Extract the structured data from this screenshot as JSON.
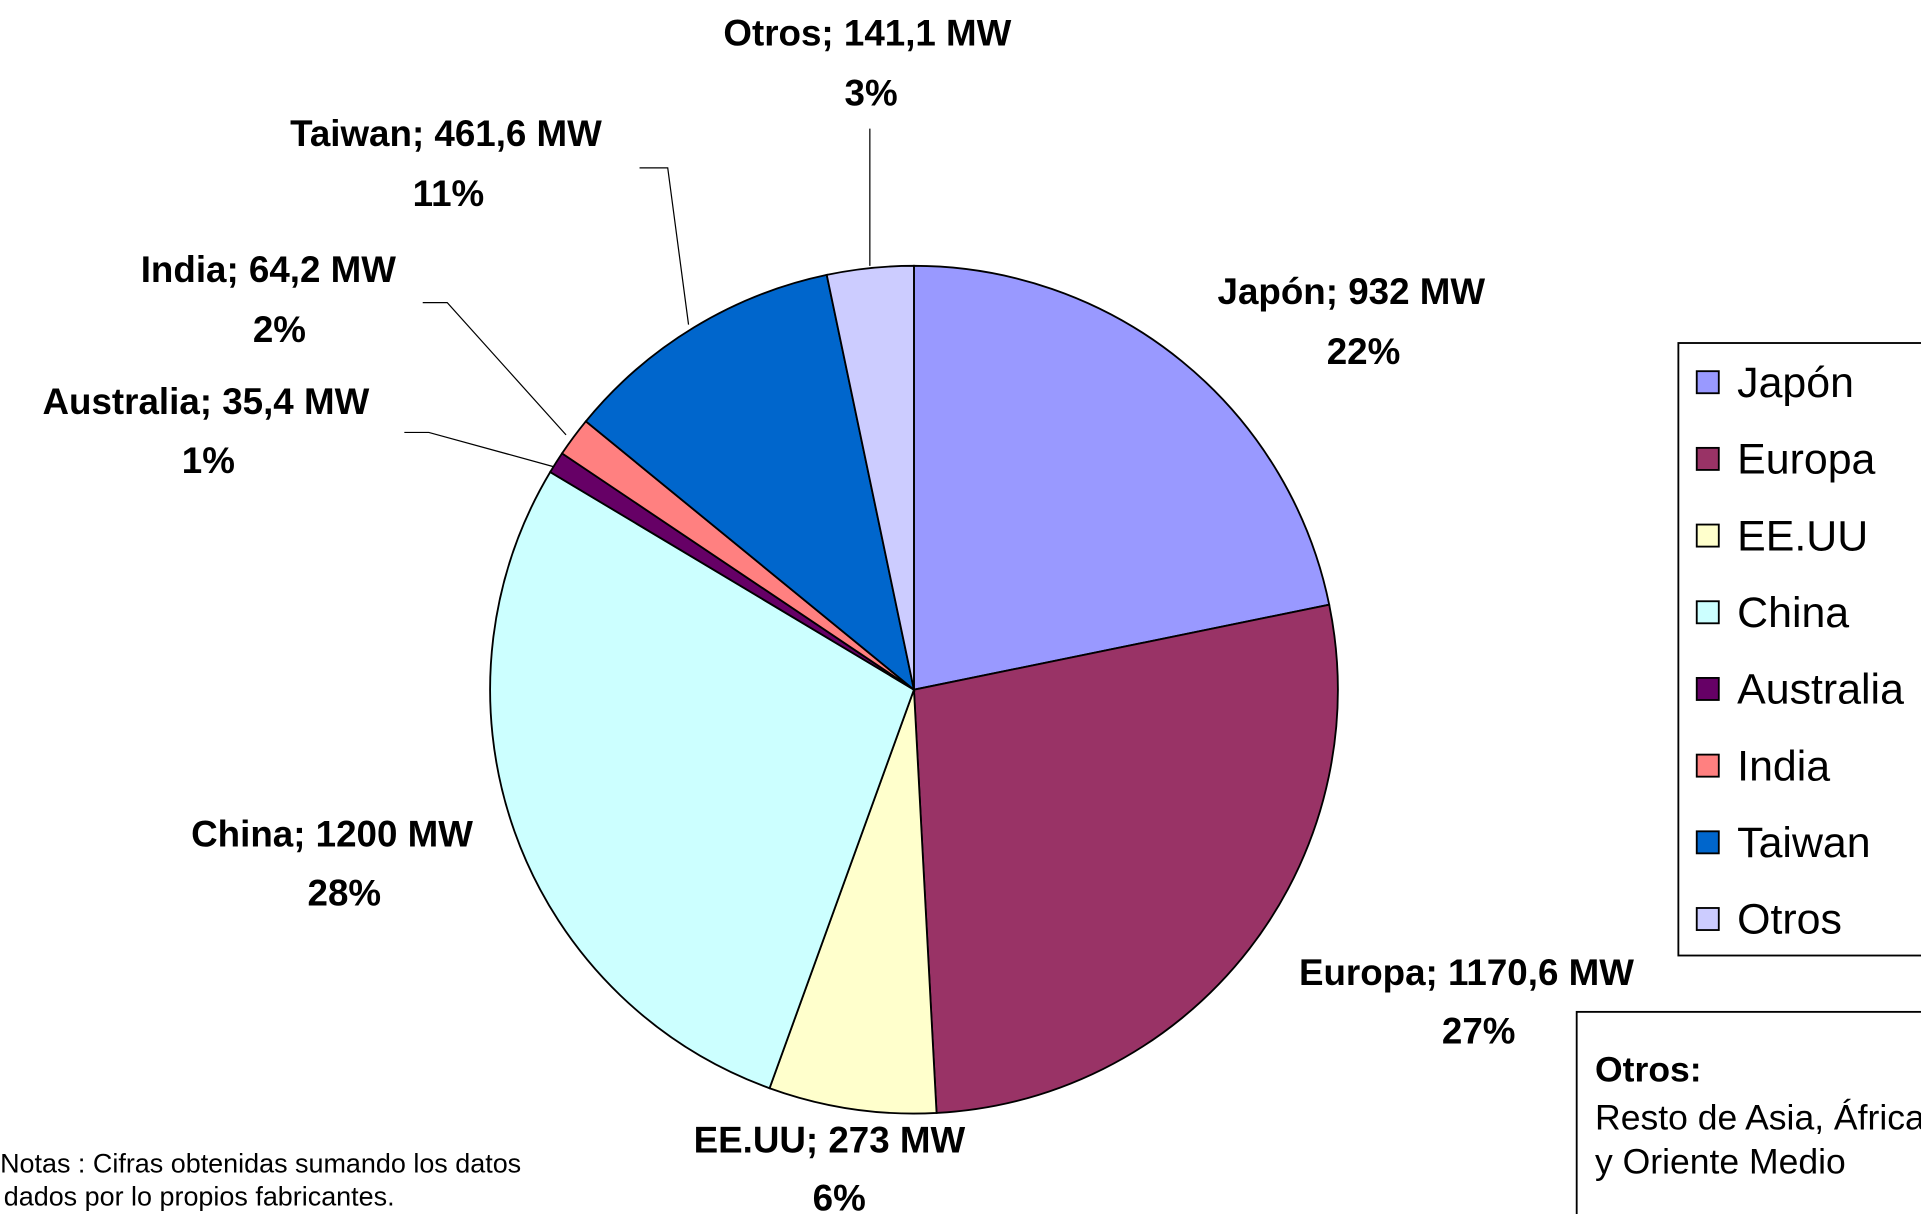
{
  "chart_data": {
    "type": "pie",
    "categories": [
      "Japón",
      "Europa",
      "EE.UU",
      "China",
      "Australia",
      "India",
      "Taiwan",
      "Otros"
    ],
    "values": [
      932,
      1170.6,
      273,
      1200,
      35.4,
      64.2,
      461.6,
      141.1
    ],
    "value_labels": [
      "Japón; 932 MW",
      "Europa; 1170,6 MW",
      "EE.UU; 273 MW",
      "China; 1200 MW",
      "Australia; 35,4 MW",
      "India; 64,2 MW",
      "Taiwan; 461,6 MW",
      "Otros; 141,1 MW"
    ],
    "percentages": [
      22,
      27,
      6,
      28,
      1,
      2,
      11,
      3
    ],
    "percentage_labels": [
      "22%",
      "27%",
      "6%",
      "28%",
      "1%",
      "2%",
      "11%",
      "3%"
    ],
    "colors": [
      "#9999ff",
      "#993366",
      "#ffffcc",
      "#ccffff",
      "#660066",
      "#ff8080",
      "#0066cc",
      "#ccccff"
    ],
    "legend": "right",
    "note": {
      "title": "Otros:",
      "lines": [
        "Resto de Asia, África",
        "y Oriente Medio"
      ]
    },
    "footnote": [
      "Notas : Cifras obtenidas sumando los datos",
      "dados por lo propios fabricantes."
    ]
  }
}
